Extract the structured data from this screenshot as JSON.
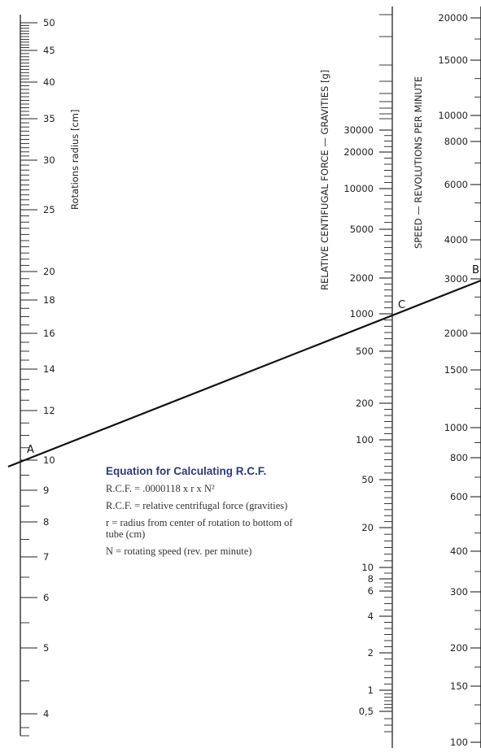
{
  "radius_scale": {
    "title": "Rotations radius [cm]",
    "labels": [
      "50",
      "45",
      "40",
      "35",
      "30",
      "25",
      "20",
      "18",
      "16",
      "14",
      "12",
      "10",
      "9",
      "8",
      "7",
      "6",
      "5",
      "4"
    ]
  },
  "rcf_scale": {
    "title": "RELATIVE CENTIFUGAL FORCE — GRAVITIES [g]",
    "labels": [
      "30000",
      "20000",
      "10000",
      "5000",
      "2000",
      "1000",
      "500",
      "200",
      "100",
      "50",
      "20",
      "10",
      "8",
      "6",
      "4",
      "2",
      "1",
      "0,5"
    ]
  },
  "speed_scale": {
    "title": "SPEED — REVOLUTIONS PER MINUTE",
    "labels": [
      "20000",
      "15000",
      "10000",
      "8000",
      "6000",
      "4000",
      "3000",
      "2000",
      "1500",
      "1000",
      "800",
      "600",
      "400",
      "300",
      "200",
      "150",
      "100"
    ]
  },
  "points": {
    "a": "A",
    "b": "B",
    "c": "C"
  },
  "equation": {
    "title": "Equation for Calculating R.C.F.",
    "formula": "R.C.F. = .0000118 x r x N²",
    "def_rcf": "R.C.F. = relative centrifugal force (gravities)",
    "def_r": "r = radius from center of rotation to bottom of tube (cm)",
    "def_n": "N = rotating speed (rev. per minute)"
  }
}
